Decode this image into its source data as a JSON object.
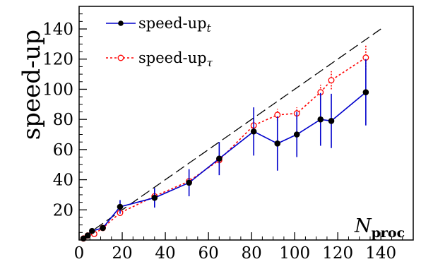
{
  "chart_data": {
    "type": "line",
    "title": "",
    "xlabel": "N",
    "xlabel_subscript": "proc",
    "ylabel": "speed-up",
    "xlim": [
      0,
      155
    ],
    "ylim": [
      0,
      155
    ],
    "x_ticks": [
      0,
      20,
      40,
      60,
      80,
      100,
      120,
      140
    ],
    "y_ticks": [
      20,
      40,
      60,
      80,
      100,
      120,
      140
    ],
    "grid": false,
    "legend_position": "top-left",
    "reference_line": {
      "style": "dashed",
      "color": "#000000",
      "x": [
        2,
        140
      ],
      "y": [
        2,
        140
      ]
    },
    "series": [
      {
        "name": "speed-up",
        "name_subscript": "t",
        "color": "#0000cc",
        "line_style": "solid",
        "marker": "filled-circle",
        "x": [
          2,
          4,
          6,
          11,
          19,
          35,
          51,
          65,
          81,
          92,
          101,
          112,
          117,
          133
        ],
        "y": [
          1,
          3,
          6,
          8,
          22,
          28,
          38,
          54,
          72,
          64,
          70,
          80,
          79,
          98
        ],
        "err": [
          0,
          0,
          0.5,
          1,
          4.5,
          6.5,
          9,
          11,
          16,
          18,
          15,
          17.5,
          18,
          22
        ]
      },
      {
        "name": "speed-up",
        "name_subscript": "τ",
        "color": "#ff0000",
        "line_style": "dotted",
        "marker": "open-circle",
        "x": [
          2,
          4,
          7,
          11,
          19,
          35,
          51,
          65,
          81,
          92,
          101,
          112,
          117,
          133
        ],
        "y": [
          1,
          3,
          4,
          8,
          18,
          29,
          39,
          53,
          76,
          83,
          84,
          98,
          106,
          121
        ],
        "err": [
          0,
          0,
          0.5,
          0.5,
          1,
          1.5,
          2,
          2.5,
          4,
          4,
          4,
          5,
          6,
          8
        ]
      }
    ]
  }
}
